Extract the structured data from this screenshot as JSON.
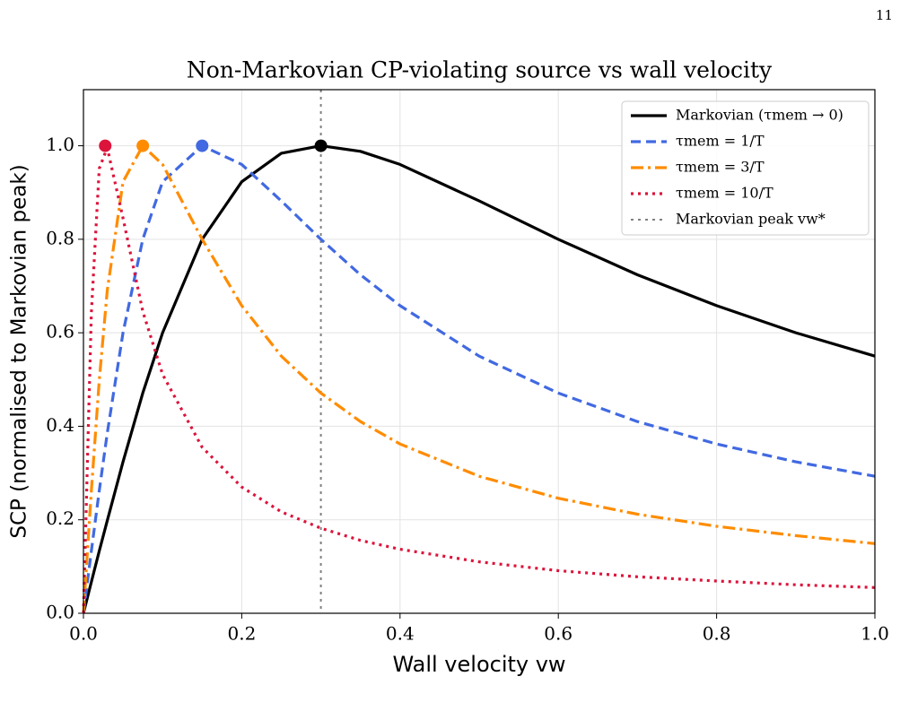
{
  "page_number": "11",
  "chart_data": {
    "type": "line",
    "title": "Non-Markovian CP-violating source vs wall velocity",
    "x_label": "Wall velocity vw",
    "y_label": "SCP (normalised to Markovian peak)",
    "x": [
      0,
      0.01,
      0.02,
      0.03,
      0.05,
      0.075,
      0.1,
      0.15,
      0.2,
      0.25,
      0.3,
      0.35,
      0.4,
      0.5,
      0.6,
      0.7,
      0.8,
      0.9,
      1.0
    ],
    "series": [
      {
        "name": "Markovian (τmem → 0)",
        "color": "#000000",
        "dash": "solid",
        "values": [
          0,
          0.067,
          0.133,
          0.198,
          0.324,
          0.471,
          0.6,
          0.8,
          0.923,
          0.984,
          1,
          0.988,
          0.96,
          0.882,
          0.8,
          0.724,
          0.658,
          0.6,
          0.55
        ],
        "peak": {
          "x": 0.3,
          "y": 1
        }
      },
      {
        "name": "τmem = 1/T",
        "color": "#4169e1",
        "dash": "dashed",
        "values": [
          0,
          0.133,
          0.262,
          0.385,
          0.6,
          0.8,
          0.923,
          1,
          0.96,
          0.882,
          0.8,
          0.724,
          0.658,
          0.55,
          0.471,
          0.41,
          0.362,
          0.324,
          0.293
        ],
        "peak": {
          "x": 0.15,
          "y": 1
        }
      },
      {
        "name": "τmem = 3/T",
        "color": "#ff8c00",
        "dash": "dashdot",
        "values": [
          0,
          0.262,
          0.498,
          0.69,
          0.923,
          1,
          0.96,
          0.8,
          0.658,
          0.55,
          0.471,
          0.41,
          0.362,
          0.293,
          0.246,
          0.212,
          0.186,
          0.166,
          0.149
        ],
        "peak": {
          "x": 0.075,
          "y": 1
        }
      },
      {
        "name": "τmem = 10/T",
        "color": "#dc143c",
        "dash": "dotted",
        "values": [
          0,
          0.642,
          0.951,
          0.996,
          0.845,
          0.646,
          0.511,
          0.355,
          0.27,
          0.217,
          0.182,
          0.156,
          0.137,
          0.11,
          0.091,
          0.078,
          0.069,
          0.061,
          0.055
        ],
        "peak": {
          "x": 0.0275,
          "y": 1
        }
      }
    ],
    "vline": {
      "x": 0.3,
      "label": "Markovian peak vw*",
      "color": "#808080"
    },
    "xlim": [
      0,
      1
    ],
    "ylim": [
      0,
      1.12
    ],
    "xticks": [
      {
        "value": 0,
        "label": "0.0"
      },
      {
        "value": 0.2,
        "label": "0.2"
      },
      {
        "value": 0.4,
        "label": "0.4"
      },
      {
        "value": 0.6,
        "label": "0.6"
      },
      {
        "value": 0.8,
        "label": "0.8"
      },
      {
        "value": 1,
        "label": "1.0"
      }
    ],
    "yticks": [
      {
        "value": 0,
        "label": "0.0"
      },
      {
        "value": 0.2,
        "label": "0.2"
      },
      {
        "value": 0.4,
        "label": "0.4"
      },
      {
        "value": 0.6,
        "label": "0.6"
      },
      {
        "value": 0.8,
        "label": "0.8"
      },
      {
        "value": 1,
        "label": "1.0"
      }
    ],
    "grid": true,
    "legend": "upper right"
  }
}
